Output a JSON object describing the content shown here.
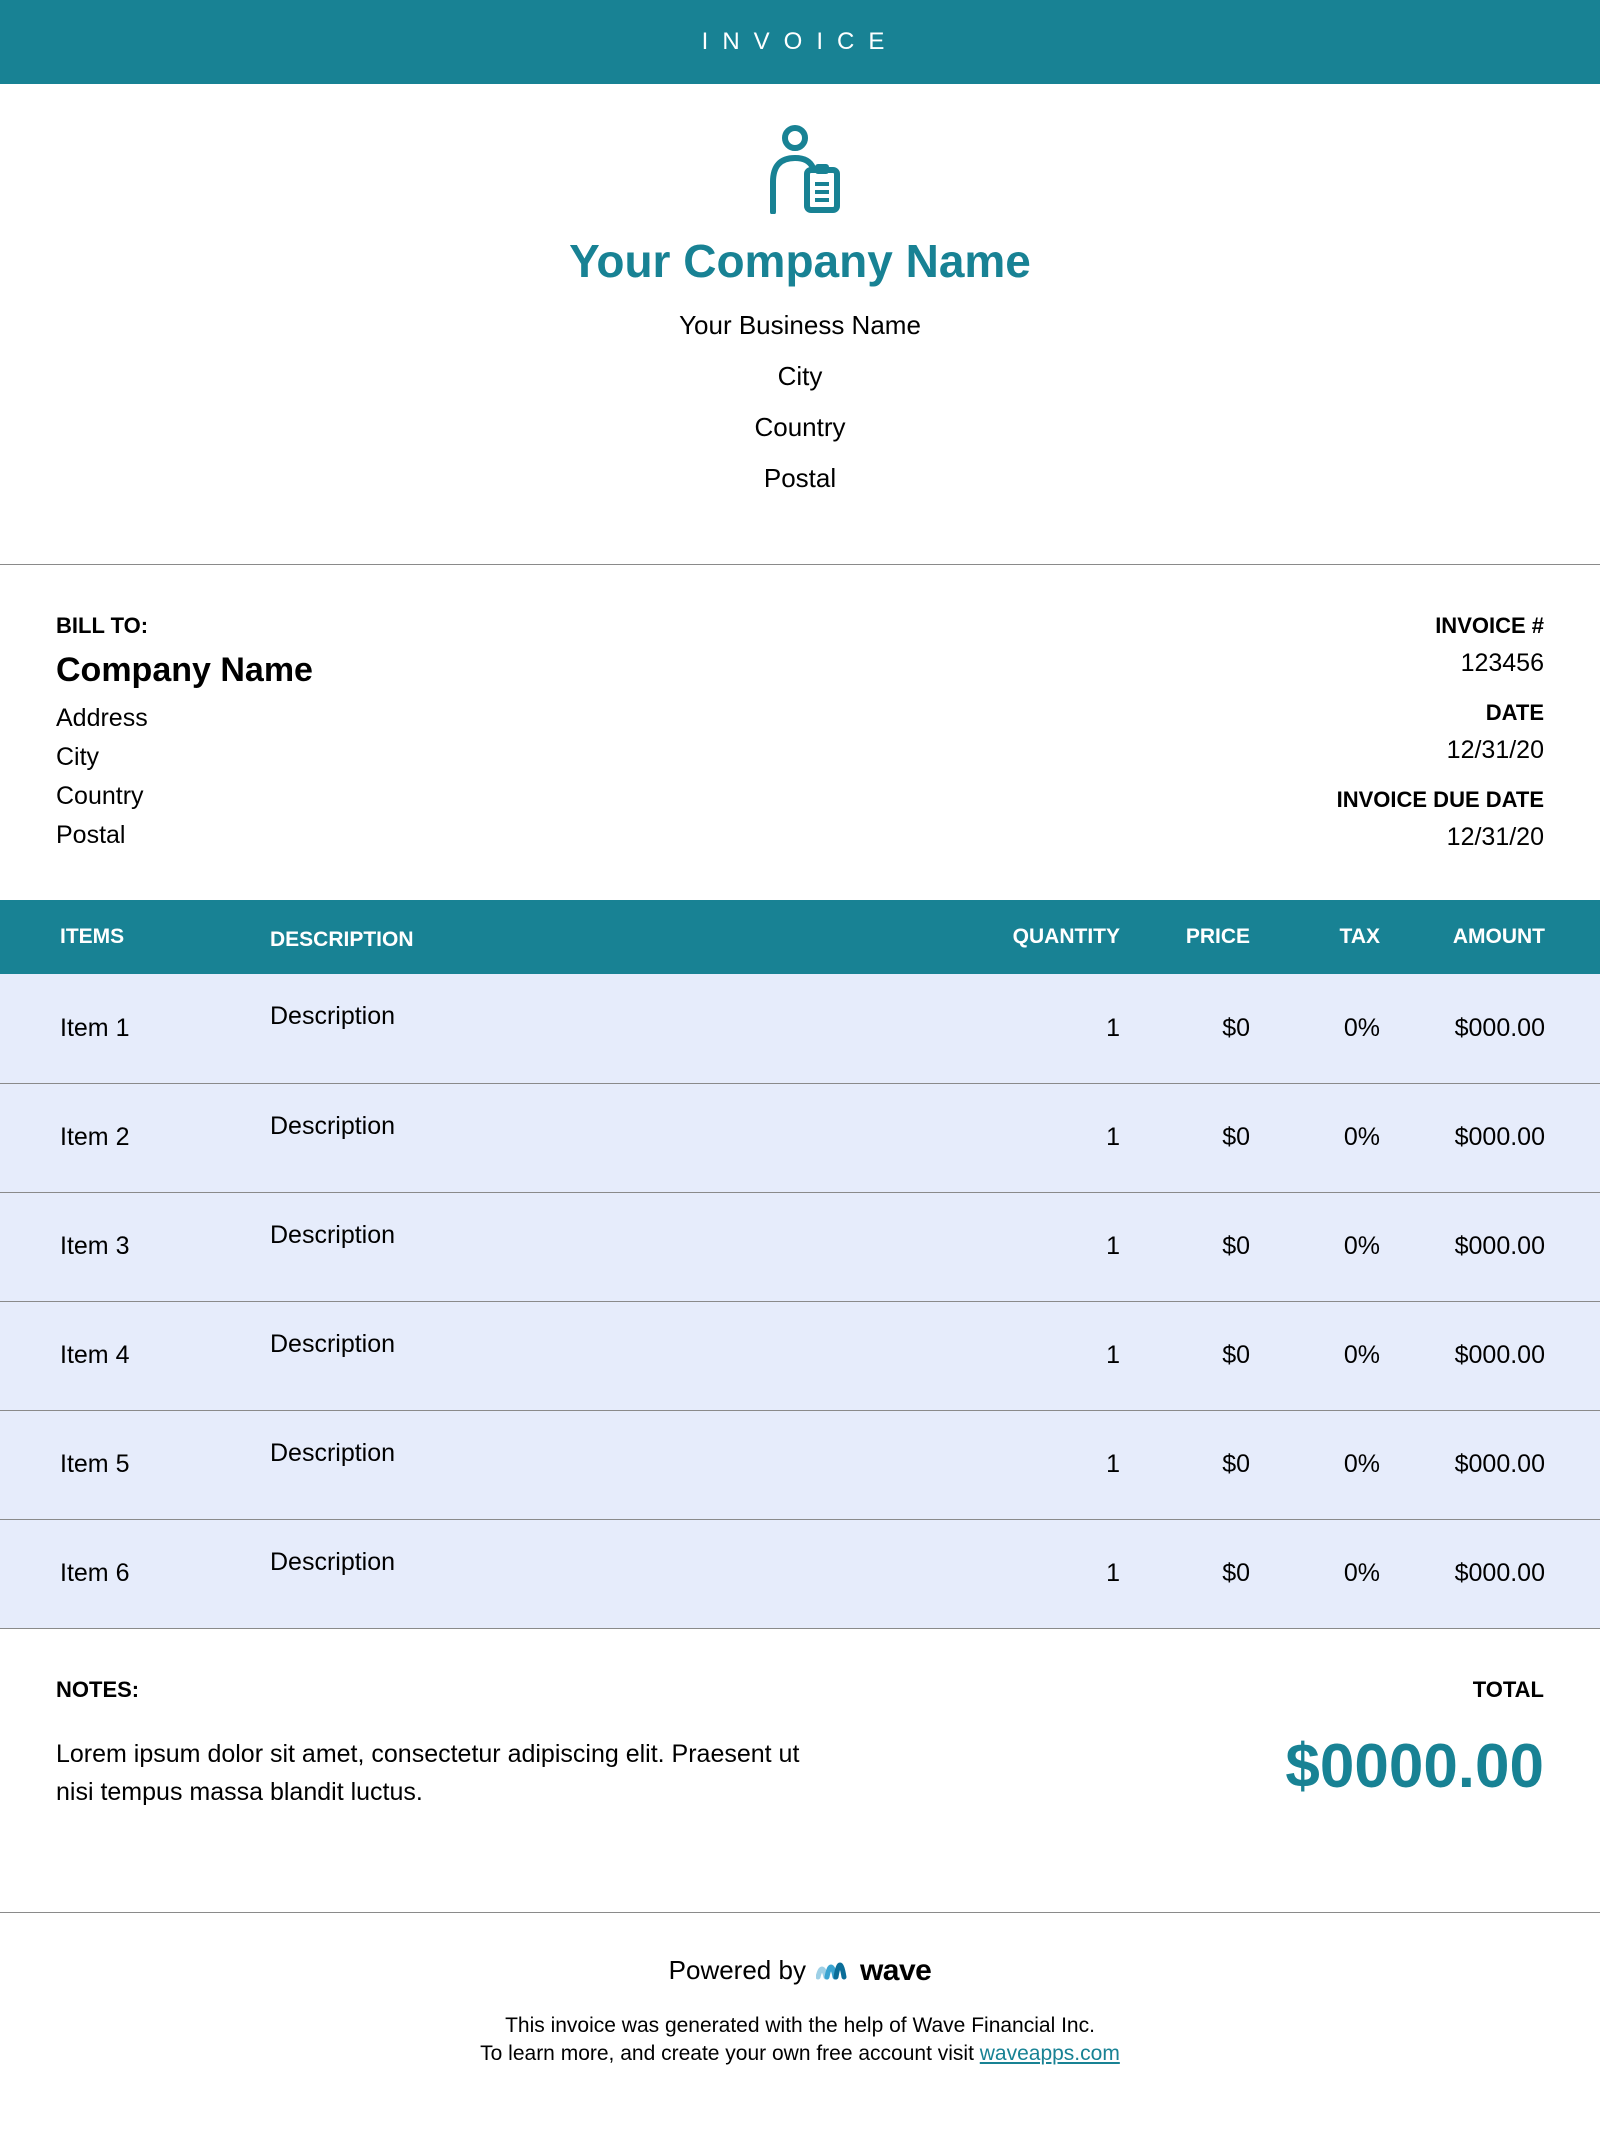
{
  "banner": {
    "title": "INVOICE"
  },
  "company": {
    "name": "Your Company Name",
    "business_name": "Your Business Name",
    "city": "City",
    "country": "Country",
    "postal": "Postal"
  },
  "bill_to": {
    "label": "BILL TO:",
    "company": "Company Name",
    "address": "Address",
    "city": "City",
    "country": "Country",
    "postal": "Postal"
  },
  "invoice_meta": {
    "number_label": "INVOICE #",
    "number": "123456",
    "date_label": "DATE",
    "date": "12/31/20",
    "due_label": "INVOICE DUE DATE",
    "due": "12/31/20"
  },
  "columns": {
    "items": "ITEMS",
    "description": "DESCRIPTION",
    "quantity": "QUANTITY",
    "price": "PRICE",
    "tax": "TAX",
    "amount": "AMOUNT"
  },
  "rows": [
    {
      "item": "Item 1",
      "description": "Description",
      "quantity": "1",
      "price": "$0",
      "tax": "0%",
      "amount": "$000.00"
    },
    {
      "item": "Item 2",
      "description": "Description",
      "quantity": "1",
      "price": "$0",
      "tax": "0%",
      "amount": "$000.00"
    },
    {
      "item": "Item 3",
      "description": "Description",
      "quantity": "1",
      "price": "$0",
      "tax": "0%",
      "amount": "$000.00"
    },
    {
      "item": "Item 4",
      "description": "Description",
      "quantity": "1",
      "price": "$0",
      "tax": "0%",
      "amount": "$000.00"
    },
    {
      "item": "Item 5",
      "description": "Description",
      "quantity": "1",
      "price": "$0",
      "tax": "0%",
      "amount": "$000.00"
    },
    {
      "item": "Item 6",
      "description": "Description",
      "quantity": "1",
      "price": "$0",
      "tax": "0%",
      "amount": "$000.00"
    }
  ],
  "notes": {
    "label": "NOTES:",
    "text": "Lorem ipsum dolor sit amet, consectetur adipiscing elit. Praesent ut nisi tempus massa blandit luctus."
  },
  "total": {
    "label": "TOTAL",
    "amount": "$0000.00"
  },
  "footer": {
    "powered_by": "Powered by",
    "brand": "wave",
    "line1": "This invoice was generated with the help of Wave Financial Inc.",
    "line2_pre": "To learn more, and create your own free account visit ",
    "link": "waveapps.com"
  },
  "colors": {
    "brand": "#188294",
    "row_bg": "#e6ecfb",
    "rule": "#8a8a8a",
    "text": "#000000",
    "wave_blue": "#3aa4d1"
  }
}
